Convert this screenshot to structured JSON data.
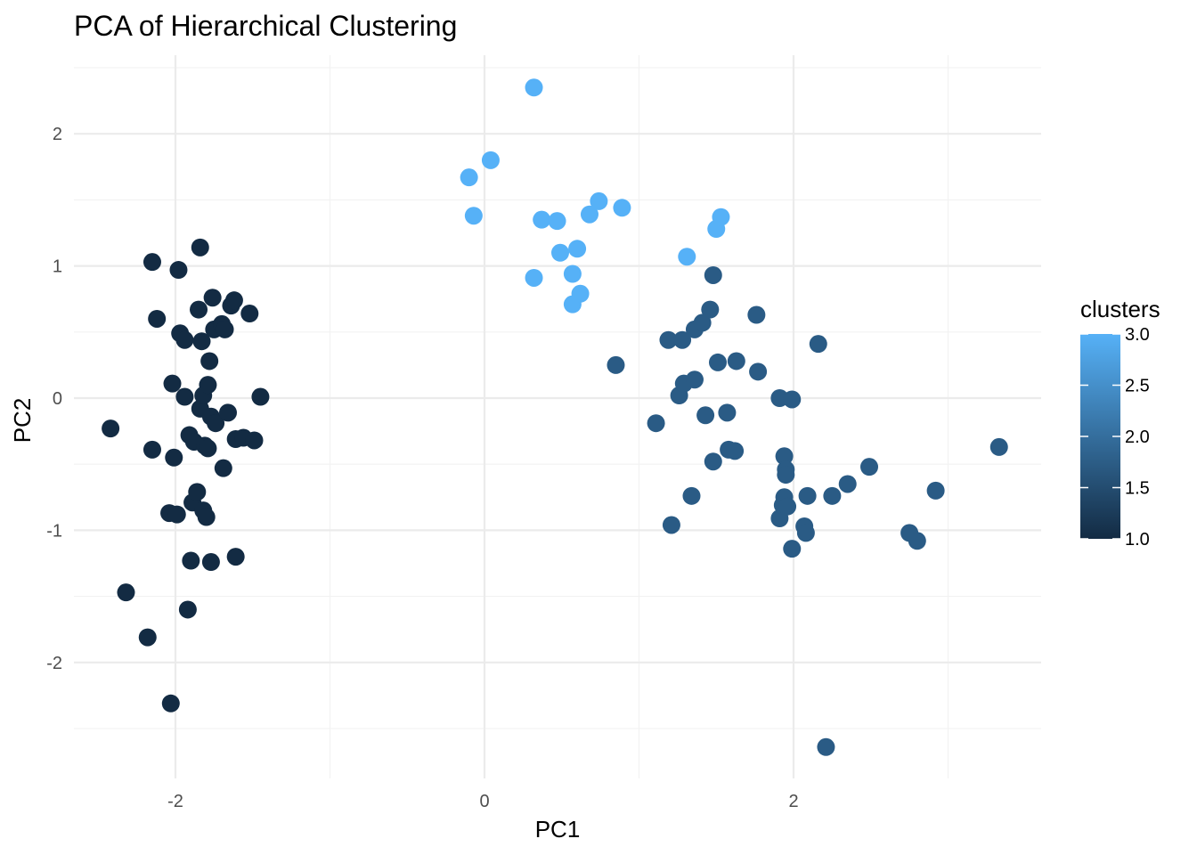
{
  "chart_data": {
    "type": "scatter",
    "title": "PCA of Hierarchical Clustering",
    "xlabel": "PC1",
    "ylabel": "PC2",
    "xlim": [
      -2.6,
      3.6
    ],
    "ylim": [
      -2.9,
      2.5
    ],
    "x_ticks": [
      -2,
      0,
      2
    ],
    "x_tick_labels": [
      "-2",
      "0",
      "2"
    ],
    "y_ticks": [
      -2,
      -1,
      0,
      1,
      2
    ],
    "y_tick_labels": [
      "-2",
      "-1",
      "0",
      "1",
      "2"
    ],
    "grid": true,
    "legend": {
      "title": "clusters",
      "placement": "right",
      "type": "colorbar",
      "range": [
        1.0,
        3.0
      ],
      "breaks": [
        1.0,
        1.5,
        2.0,
        2.5,
        3.0
      ],
      "break_labels": [
        "1.0",
        "1.5",
        "2.0",
        "2.5",
        "3.0"
      ],
      "color_low": "#132B43",
      "color_high": "#56B1F7"
    },
    "series": [
      {
        "cluster": 1,
        "color": "#132B43",
        "points": [
          [
            -2.42,
            -0.23
          ],
          [
            -2.32,
            -1.47
          ],
          [
            -2.18,
            -1.81
          ],
          [
            -2.15,
            -0.39
          ],
          [
            -2.15,
            1.03
          ],
          [
            -2.12,
            0.6
          ],
          [
            -2.03,
            -2.31
          ],
          [
            -2.02,
            0.11
          ],
          [
            -2.01,
            -0.45
          ],
          [
            -2.04,
            -0.87
          ],
          [
            -1.99,
            -0.88
          ],
          [
            -1.98,
            0.97
          ],
          [
            -1.97,
            0.49
          ],
          [
            -1.94,
            0.44
          ],
          [
            -1.94,
            0.01
          ],
          [
            -1.91,
            -0.28
          ],
          [
            -1.92,
            -1.6
          ],
          [
            -1.9,
            -1.23
          ],
          [
            -1.89,
            -0.79
          ],
          [
            -1.88,
            -0.33
          ],
          [
            -1.86,
            -0.71
          ],
          [
            -1.85,
            0.67
          ],
          [
            -1.84,
            1.14
          ],
          [
            -1.83,
            0.43
          ],
          [
            -1.84,
            -0.08
          ],
          [
            -1.82,
            -0.85
          ],
          [
            -1.8,
            -0.9
          ],
          [
            -1.81,
            -0.36
          ],
          [
            -1.82,
            0.02
          ],
          [
            -1.79,
            0.1
          ],
          [
            -1.78,
            0.28
          ],
          [
            -1.79,
            -0.38
          ],
          [
            -1.77,
            -0.14
          ],
          [
            -1.77,
            -1.24
          ],
          [
            -1.76,
            0.76
          ],
          [
            -1.75,
            0.52
          ],
          [
            -1.74,
            -0.19
          ],
          [
            -1.7,
            0.56
          ],
          [
            -1.68,
            0.52
          ],
          [
            -1.69,
            -0.53
          ],
          [
            -1.66,
            -0.11
          ],
          [
            -1.64,
            0.7
          ],
          [
            -1.62,
            0.74
          ],
          [
            -1.61,
            -1.2
          ],
          [
            -1.61,
            -0.31
          ],
          [
            -1.56,
            -0.3
          ],
          [
            -1.52,
            0.64
          ],
          [
            -1.49,
            -0.32
          ],
          [
            -1.45,
            0.01
          ]
        ]
      },
      {
        "cluster": 2,
        "color": "#2A5B85",
        "points": [
          [
            0.85,
            0.25
          ],
          [
            1.11,
            -0.19
          ],
          [
            1.19,
            0.44
          ],
          [
            1.21,
            -0.96
          ],
          [
            1.26,
            0.02
          ],
          [
            1.28,
            0.44
          ],
          [
            1.29,
            0.11
          ],
          [
            1.34,
            -0.74
          ],
          [
            1.36,
            0.52
          ],
          [
            1.36,
            0.14
          ],
          [
            1.41,
            0.57
          ],
          [
            1.43,
            -0.13
          ],
          [
            1.46,
            0.67
          ],
          [
            1.48,
            -0.48
          ],
          [
            1.48,
            0.93
          ],
          [
            1.51,
            0.27
          ],
          [
            1.57,
            -0.11
          ],
          [
            1.58,
            -0.39
          ],
          [
            1.62,
            -0.4
          ],
          [
            1.63,
            0.28
          ],
          [
            1.76,
            0.63
          ],
          [
            1.77,
            0.2
          ],
          [
            1.91,
            -0.91
          ],
          [
            1.91,
            0.0
          ],
          [
            1.93,
            -0.81
          ],
          [
            1.94,
            -0.75
          ],
          [
            1.94,
            -0.44
          ],
          [
            1.95,
            -0.54
          ],
          [
            1.95,
            -0.58
          ],
          [
            1.96,
            -0.82
          ],
          [
            1.99,
            -0.01
          ],
          [
            1.99,
            -1.14
          ],
          [
            2.07,
            -0.97
          ],
          [
            2.08,
            -1.02
          ],
          [
            2.09,
            -0.74
          ],
          [
            2.16,
            0.41
          ],
          [
            2.21,
            -2.64
          ],
          [
            2.25,
            -0.74
          ],
          [
            2.35,
            -0.65
          ],
          [
            2.49,
            -0.52
          ],
          [
            2.75,
            -1.02
          ],
          [
            2.8,
            -1.08
          ],
          [
            2.92,
            -0.7
          ],
          [
            3.33,
            -0.37
          ]
        ]
      },
      {
        "cluster": 3,
        "color": "#56B1F7",
        "points": [
          [
            -0.1,
            1.67
          ],
          [
            -0.07,
            1.38
          ],
          [
            0.04,
            1.8
          ],
          [
            0.32,
            2.35
          ],
          [
            0.32,
            0.91
          ],
          [
            0.37,
            1.35
          ],
          [
            0.47,
            1.34
          ],
          [
            0.49,
            1.1
          ],
          [
            0.57,
            0.94
          ],
          [
            0.57,
            0.71
          ],
          [
            0.6,
            1.13
          ],
          [
            0.62,
            0.79
          ],
          [
            0.68,
            1.39
          ],
          [
            0.74,
            1.49
          ],
          [
            0.89,
            1.44
          ],
          [
            1.31,
            1.07
          ],
          [
            1.5,
            1.28
          ],
          [
            1.53,
            1.37
          ]
        ]
      }
    ]
  }
}
